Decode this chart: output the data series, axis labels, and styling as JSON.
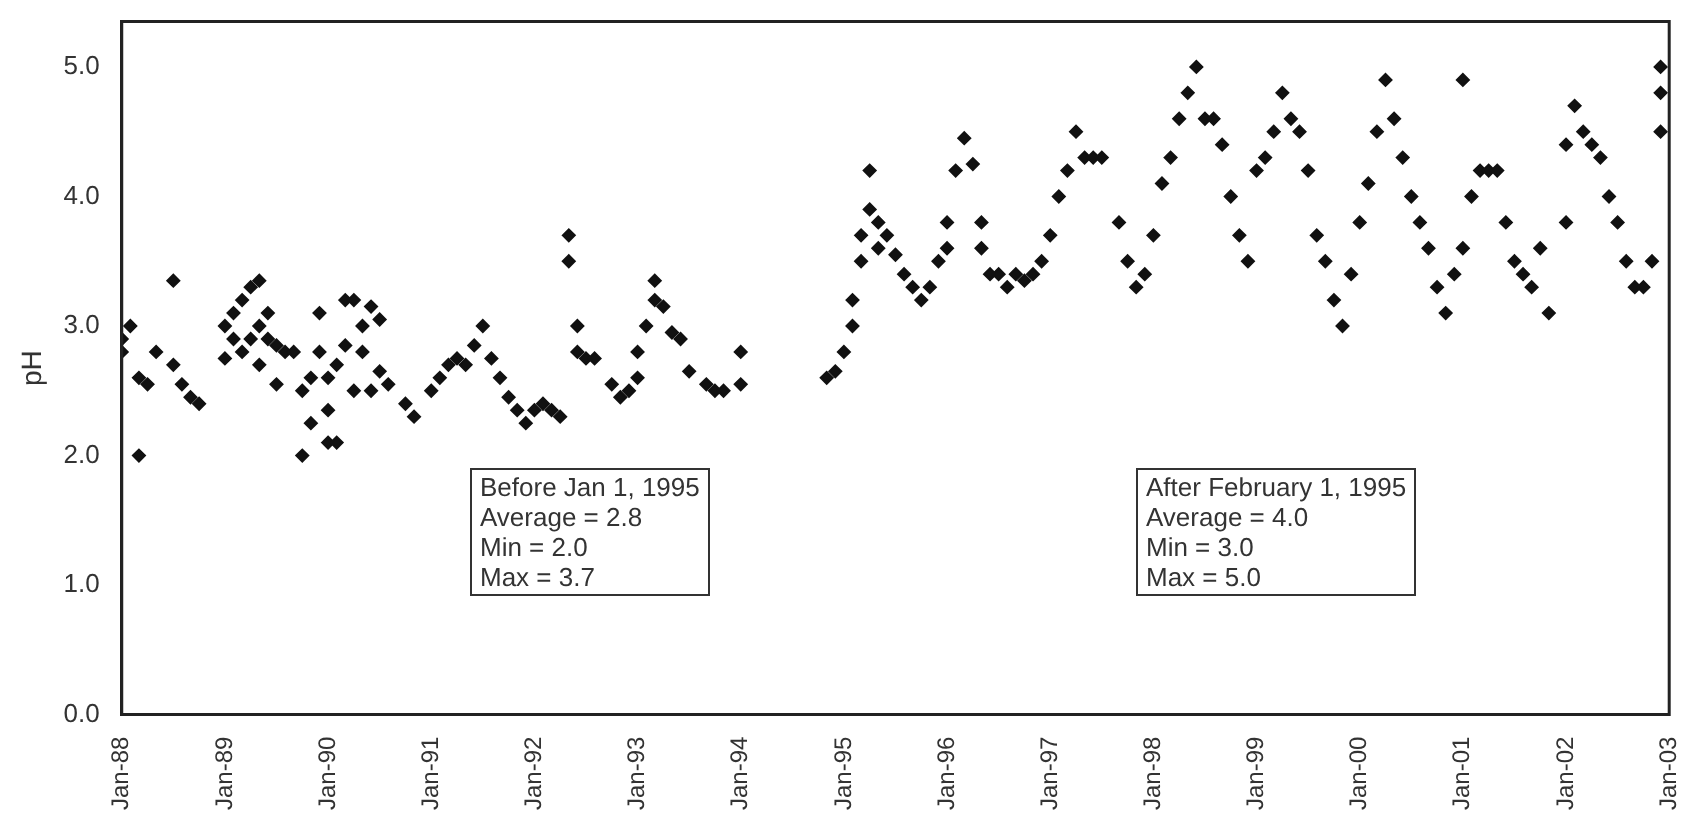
{
  "chart_data": {
    "type": "scatter",
    "ylabel": "pH",
    "marker": "diamond",
    "grid": false,
    "legend": false,
    "xlim": [
      "1988-01",
      "2003-01"
    ],
    "xticks": [
      {
        "value": "1988-01",
        "label": "Jan-88"
      },
      {
        "value": "1989-01",
        "label": "Jan-89"
      },
      {
        "value": "1990-01",
        "label": "Jan-90"
      },
      {
        "value": "1991-01",
        "label": "Jan-91"
      },
      {
        "value": "1992-01",
        "label": "Jan-92"
      },
      {
        "value": "1993-01",
        "label": "Jan-93"
      },
      {
        "value": "1994-01",
        "label": "Jan-94"
      },
      {
        "value": "1995-01",
        "label": "Jan-95"
      },
      {
        "value": "1996-01",
        "label": "Jan-96"
      },
      {
        "value": "1997-01",
        "label": "Jan-97"
      },
      {
        "value": "1998-01",
        "label": "Jan-98"
      },
      {
        "value": "1999-01",
        "label": "Jan-99"
      },
      {
        "value": "2000-01",
        "label": "Jan-00"
      },
      {
        "value": "2001-01",
        "label": "Jan-01"
      },
      {
        "value": "2002-01",
        "label": "Jan-02"
      },
      {
        "value": "2003-01",
        "label": "Jan-03"
      }
    ],
    "ylim": [
      0,
      5.35
    ],
    "yticks": [
      {
        "value": 0,
        "label": "0.0"
      },
      {
        "value": 1,
        "label": "1.0"
      },
      {
        "value": 2,
        "label": "2.0"
      },
      {
        "value": 3,
        "label": "3.0"
      },
      {
        "value": 4,
        "label": "4.0"
      },
      {
        "value": 5,
        "label": "5.0"
      }
    ],
    "annotations": [
      "Before Jan 1, 1995\nAverage = 2.8\nMin = 2.0\nMax = 3.7",
      "After February 1, 1995\nAverage = 4.0\nMin = 3.0\nMax = 5.0"
    ],
    "series": [
      {
        "color": "#111111",
        "x": [
          "1988-01",
          "1988-01",
          "1988-02",
          "1988-03",
          "1988-03",
          "1988-04",
          "1988-05",
          "1988-07",
          "1988-07",
          "1988-08",
          "1988-09",
          "1988-10",
          "1989-01",
          "1989-01",
          "1989-02",
          "1989-02",
          "1989-03",
          "1989-03",
          "1989-04",
          "1989-04",
          "1989-05",
          "1989-05",
          "1989-05",
          "1989-06",
          "1989-06",
          "1989-07",
          "1989-07",
          "1989-08",
          "1989-09",
          "1989-10",
          "1989-10",
          "1989-11",
          "1989-11",
          "1989-12",
          "1989-12",
          "1990-01",
          "1990-01",
          "1990-01",
          "1990-02",
          "1990-02",
          "1990-03",
          "1990-03",
          "1990-04",
          "1990-04",
          "1990-05",
          "1990-05",
          "1990-06",
          "1990-06",
          "1990-07",
          "1990-07",
          "1990-08",
          "1990-10",
          "1990-11",
          "1991-01",
          "1991-02",
          "1991-03",
          "1991-04",
          "1991-05",
          "1991-06",
          "1991-07",
          "1991-08",
          "1991-09",
          "1991-10",
          "1991-11",
          "1991-12",
          "1992-01",
          "1992-02",
          "1992-03",
          "1992-04",
          "1992-05",
          "1992-05",
          "1992-06",
          "1992-06",
          "1992-07",
          "1992-08",
          "1992-10",
          "1992-11",
          "1992-12",
          "1993-01",
          "1993-01",
          "1993-02",
          "1993-03",
          "1993-03",
          "1993-04",
          "1993-05",
          "1993-06",
          "1993-07",
          "1993-09",
          "1993-10",
          "1993-11",
          "1994-01",
          "1994-01",
          "1994-11",
          "1994-12",
          "1995-01",
          "1995-02",
          "1995-02",
          "1995-03",
          "1995-03",
          "1995-04",
          "1995-04",
          "1995-05",
          "1995-05",
          "1995-06",
          "1995-07",
          "1995-08",
          "1995-09",
          "1995-10",
          "1995-11",
          "1995-12",
          "1996-01",
          "1996-01",
          "1996-02",
          "1996-03",
          "1996-04",
          "1996-05",
          "1996-05",
          "1996-06",
          "1996-07",
          "1996-08",
          "1996-09",
          "1996-10",
          "1996-11",
          "1996-12",
          "1997-01",
          "1997-02",
          "1997-03",
          "1997-04",
          "1997-05",
          "1997-06",
          "1997-07",
          "1997-09",
          "1997-10",
          "1997-11",
          "1997-12",
          "1998-01",
          "1998-02",
          "1998-03",
          "1998-04",
          "1998-05",
          "1998-06",
          "1998-07",
          "1998-08",
          "1998-09",
          "1998-10",
          "1998-11",
          "1998-12",
          "1999-01",
          "1999-02",
          "1999-03",
          "1999-04",
          "1999-05",
          "1999-06",
          "1999-07",
          "1999-08",
          "1999-09",
          "1999-10",
          "1999-11",
          "1999-12",
          "2000-01",
          "2000-02",
          "2000-03",
          "2000-04",
          "2000-05",
          "2000-06",
          "2000-07",
          "2000-08",
          "2000-09",
          "2000-10",
          "2000-11",
          "2000-12",
          "2001-01",
          "2001-01",
          "2001-02",
          "2001-03",
          "2001-04",
          "2001-05",
          "2001-06",
          "2001-07",
          "2001-08",
          "2001-09",
          "2001-10",
          "2001-11",
          "2002-01",
          "2002-01",
          "2002-02",
          "2002-03",
          "2002-04",
          "2002-05",
          "2002-06",
          "2002-07",
          "2002-08",
          "2002-09",
          "2002-10",
          "2002-11",
          "2002-12",
          "2002-12",
          "2002-12"
        ],
        "values": [
          2.9,
          2.8,
          3.0,
          2.6,
          2.0,
          2.55,
          2.8,
          2.7,
          3.35,
          2.55,
          2.45,
          2.4,
          2.75,
          3.0,
          2.9,
          3.1,
          2.8,
          3.2,
          2.9,
          3.3,
          3.35,
          3.0,
          2.7,
          3.1,
          2.9,
          2.55,
          2.85,
          2.8,
          2.8,
          2.5,
          2.0,
          2.25,
          2.6,
          2.8,
          3.1,
          2.1,
          2.35,
          2.6,
          2.1,
          2.7,
          2.85,
          3.2,
          3.2,
          2.5,
          3.0,
          2.8,
          2.5,
          3.15,
          2.65,
          3.05,
          2.55,
          2.4,
          2.3,
          2.5,
          2.6,
          2.7,
          2.75,
          2.7,
          2.85,
          3.0,
          2.75,
          2.6,
          2.45,
          2.35,
          2.25,
          2.35,
          2.4,
          2.35,
          2.3,
          3.7,
          3.5,
          3.0,
          2.8,
          2.75,
          2.75,
          2.55,
          2.45,
          2.5,
          2.6,
          2.8,
          3.0,
          3.2,
          3.35,
          3.15,
          2.95,
          2.9,
          2.65,
          2.55,
          2.5,
          2.5,
          2.55,
          2.8,
          2.6,
          2.65,
          2.8,
          3.0,
          3.2,
          3.5,
          3.7,
          3.9,
          4.2,
          3.6,
          3.8,
          3.7,
          3.55,
          3.4,
          3.3,
          3.2,
          3.3,
          3.5,
          3.6,
          3.8,
          4.2,
          4.45,
          4.25,
          3.8,
          3.6,
          3.4,
          3.4,
          3.3,
          3.4,
          3.35,
          3.4,
          3.5,
          3.7,
          4.0,
          4.2,
          4.5,
          4.3,
          4.3,
          4.3,
          3.8,
          3.5,
          3.3,
          3.4,
          3.7,
          4.1,
          4.3,
          4.6,
          4.8,
          5.0,
          4.6,
          4.6,
          4.4,
          4.0,
          3.7,
          3.5,
          4.2,
          4.3,
          4.5,
          4.8,
          4.6,
          4.5,
          4.2,
          3.7,
          3.5,
          3.2,
          3.0,
          3.4,
          3.8,
          4.1,
          4.5,
          4.9,
          4.6,
          4.3,
          4.0,
          3.8,
          3.6,
          3.3,
          3.1,
          3.4,
          3.6,
          4.9,
          4.0,
          4.2,
          4.2,
          4.2,
          3.8,
          3.5,
          3.4,
          3.3,
          3.6,
          3.1,
          3.8,
          4.4,
          4.7,
          4.5,
          4.4,
          4.3,
          4.0,
          3.8,
          3.5,
          3.3,
          3.3,
          3.5,
          4.5,
          4.8,
          5.0
        ]
      }
    ]
  }
}
